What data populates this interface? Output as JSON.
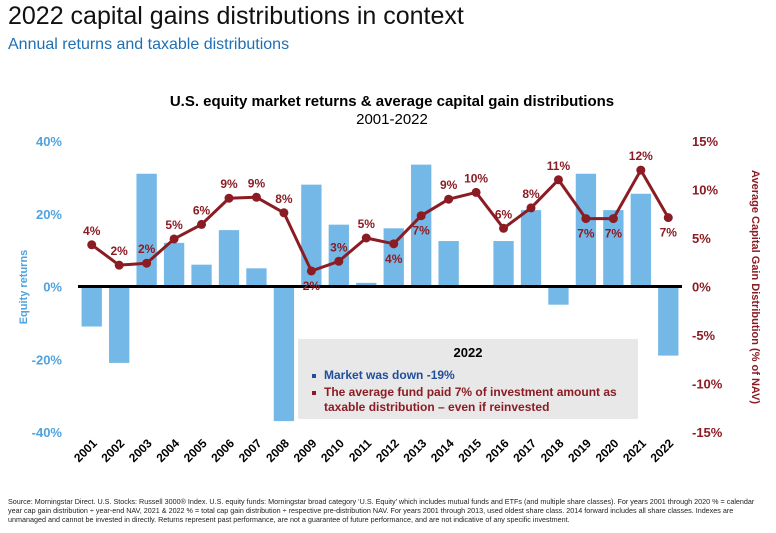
{
  "header": {
    "title": "2022 capital gains distributions in context",
    "subtitle": "Annual returns and taxable distributions"
  },
  "colors": {
    "bars": "#74b8e8",
    "line": "#8b1c24",
    "left_axis": "#4fa3de",
    "right_axis": "#8b1c24"
  },
  "chart_data": {
    "type": "bar",
    "title": "U.S. equity market returns & average capital gain distributions",
    "subtitle": "2001-2022",
    "categories": [
      "2001",
      "2002",
      "2003",
      "2004",
      "2005",
      "2006",
      "2007",
      "2008",
      "2009",
      "2010",
      "2011",
      "2012",
      "2013",
      "2014",
      "2015",
      "2016",
      "2017",
      "2018",
      "2019",
      "2020",
      "2021",
      "2022"
    ],
    "series": [
      {
        "type": "bar",
        "axis": "left",
        "values": [
          -11,
          -21,
          31,
          12,
          6,
          15.5,
          5,
          -37,
          28,
          17,
          1,
          16,
          33.5,
          12.5,
          0,
          12.5,
          21,
          -5,
          31,
          21,
          25.5,
          -19
        ]
      },
      {
        "type": "line",
        "axis": "right",
        "values": [
          4.3,
          2.2,
          2.4,
          4.9,
          6.4,
          9.1,
          9.2,
          7.6,
          1.6,
          2.6,
          5.0,
          4.4,
          7.3,
          9.0,
          9.7,
          6.0,
          8.1,
          11.0,
          7.0,
          7.0,
          12.0,
          7.1
        ]
      }
    ],
    "data_labels": [
      "4%",
      "2%",
      "2%",
      "5%",
      "6%",
      "9%",
      "9%",
      "8%",
      "2%",
      "3%",
      "5%",
      "4%",
      "7%",
      "9%",
      "10%",
      "6%",
      "8%",
      "11%",
      "7%",
      "7%",
      "12%",
      "7%"
    ],
    "label_below": [
      false,
      false,
      false,
      false,
      false,
      false,
      false,
      false,
      true,
      false,
      false,
      true,
      true,
      false,
      false,
      false,
      false,
      false,
      true,
      true,
      false,
      true
    ],
    "ylabel_left": "Equity returns",
    "ylabel_right": "Average Capital Gain Distribution (% of NAV)",
    "ylim_left": [
      -40,
      40
    ],
    "ylim_right": [
      -15,
      15
    ],
    "yticks_left": [
      "40%",
      "20%",
      "0%",
      "-20%",
      "-40%"
    ],
    "yticks_right": [
      "15%",
      "10%",
      "5%",
      "0%",
      "-5%",
      "-10%",
      "-15%"
    ],
    "grid": false
  },
  "legend": {
    "title": "2022",
    "items": [
      "Market was down -19%",
      "The average fund paid 7% of investment amount as taxable distribution – even if reinvested"
    ]
  },
  "footnote": "Source: Morningstar Direct. U.S. Stocks: Russell 3000® Index. U.S. equity funds: Morningstar broad category ‘U.S. Equity’ which includes mutual funds and ETFs (and multiple share classes). For years 2001 through 2020 % = calendar year cap gain distribution ÷ year-end NAV, 2021 & 2022 % = total cap gain distribution ÷ respective pre-distribution NAV. For years 2001 through 2013, used oldest share class. 2014 forward includes all share classes. Indexes are unmanaged and cannot be invested in directly. Returns represent past performance, are not a guarantee of future performance, and are not indicative of any specific investment."
}
